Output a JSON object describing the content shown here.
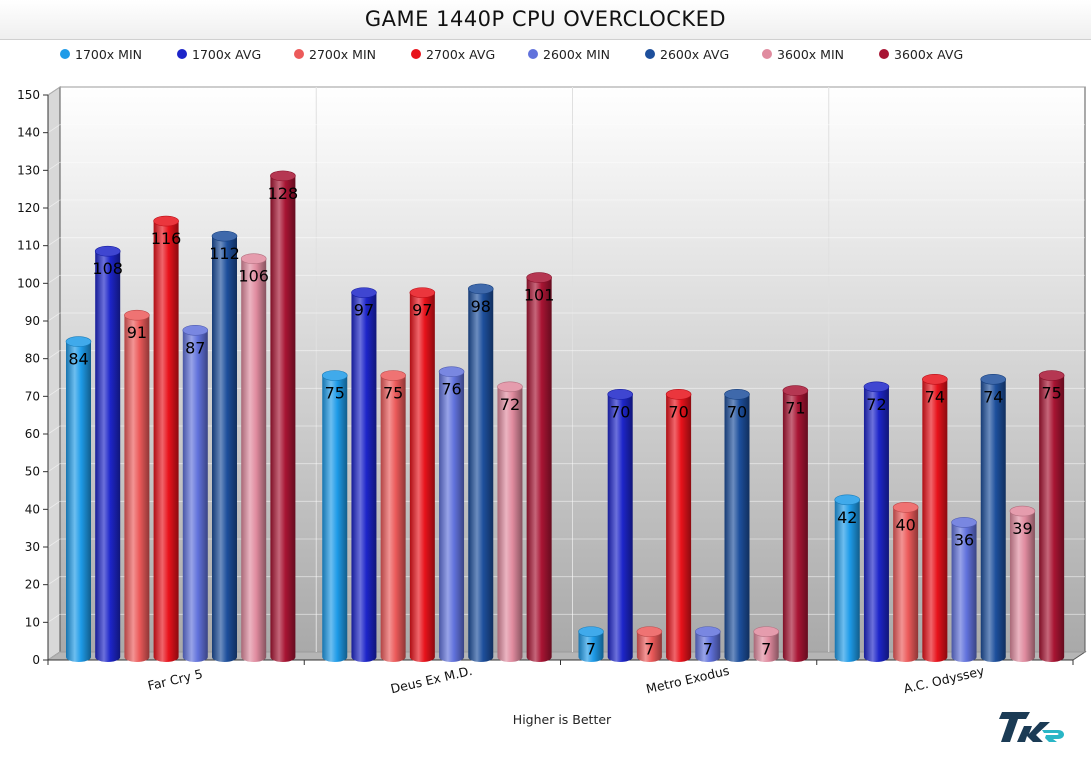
{
  "chart_data": {
    "type": "bar",
    "title": "GAME 1440P CPU OVERCLOCKED",
    "xlabel": "Higher is Better",
    "ylabel": "",
    "ylim": [
      0,
      150
    ],
    "ytick_step": 10,
    "grid": true,
    "legend_position": "top",
    "categories": [
      "Far Cry 5",
      "Deus Ex M.D.",
      "Metro Exodus",
      "A.C. Odyssey"
    ],
    "series": [
      {
        "name": "1700x MIN",
        "color": "#1e9be8",
        "values": [
          84,
          75,
          7,
          42
        ]
      },
      {
        "name": "1700x AVG",
        "color": "#1d25c9",
        "values": [
          108,
          97,
          70,
          72
        ]
      },
      {
        "name": "2700x MIN",
        "color": "#ec5a5a",
        "values": [
          91,
          75,
          7,
          40
        ]
      },
      {
        "name": "2700x AVG",
        "color": "#e8121b",
        "values": [
          116,
          97,
          70,
          74
        ]
      },
      {
        "name": "2600x MIN",
        "color": "#6172dc",
        "values": [
          87,
          76,
          7,
          36
        ]
      },
      {
        "name": "2600x AVG",
        "color": "#1d4f9c",
        "values": [
          112,
          98,
          70,
          74
        ]
      },
      {
        "name": "3600x MIN",
        "color": "#e08b9f",
        "values": [
          106,
          72,
          7,
          39
        ]
      },
      {
        "name": "3600x AVG",
        "color": "#a81433",
        "values": [
          128,
          101,
          71,
          75
        ]
      }
    ]
  },
  "branding": {
    "logo_text": "TKR"
  }
}
